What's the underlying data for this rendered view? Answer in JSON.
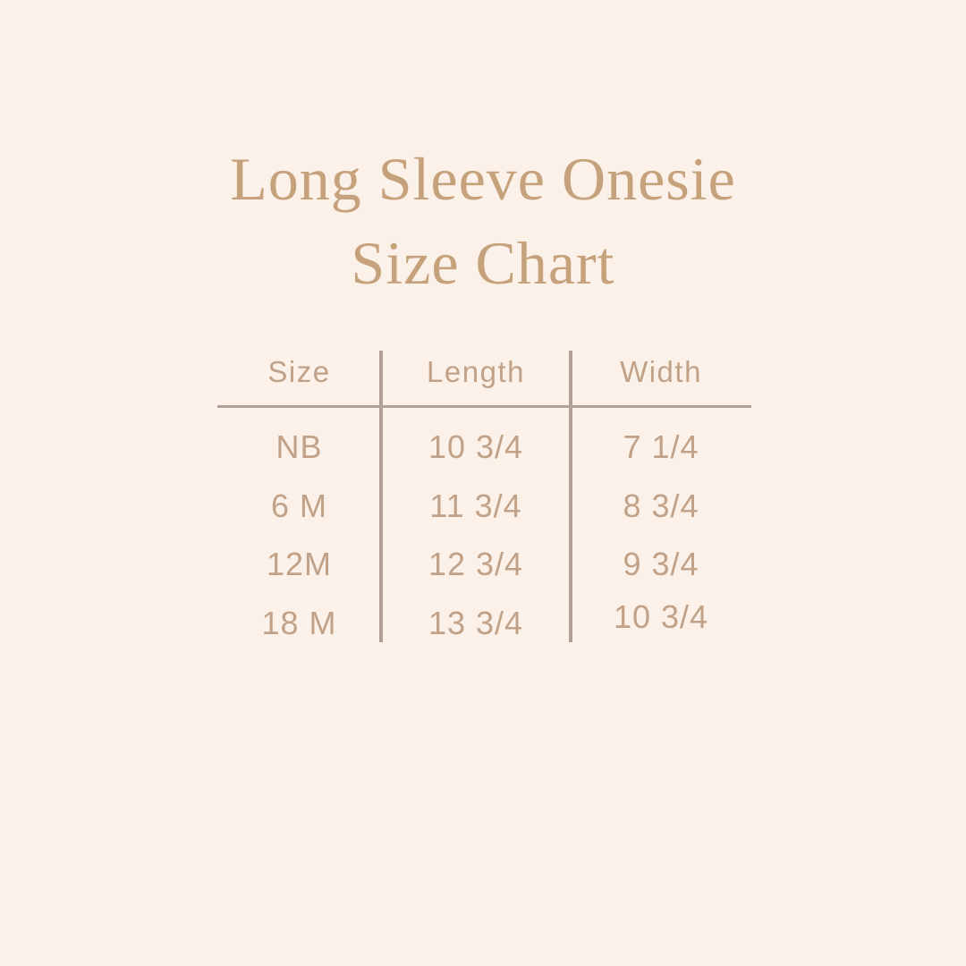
{
  "page": {
    "background_color": "#fbf1e8",
    "title_color": "#c5a17c",
    "text_color": "#c1a288",
    "line_color": "#b0a097"
  },
  "title": {
    "line1": "Long Sleeve Onesie",
    "line2": "Size Chart"
  },
  "chart_data": {
    "type": "table",
    "title": "Long Sleeve Onesie Size Chart",
    "columns": [
      "Size",
      "Length",
      "Width"
    ],
    "rows": [
      [
        "NB",
        "10 3/4",
        "7 1/4"
      ],
      [
        "6 M",
        "11 3/4",
        "8 3/4"
      ],
      [
        "12M",
        "12 3/4",
        "9 3/4"
      ],
      [
        "18 M",
        "13 3/4",
        "10 3/4"
      ]
    ]
  }
}
